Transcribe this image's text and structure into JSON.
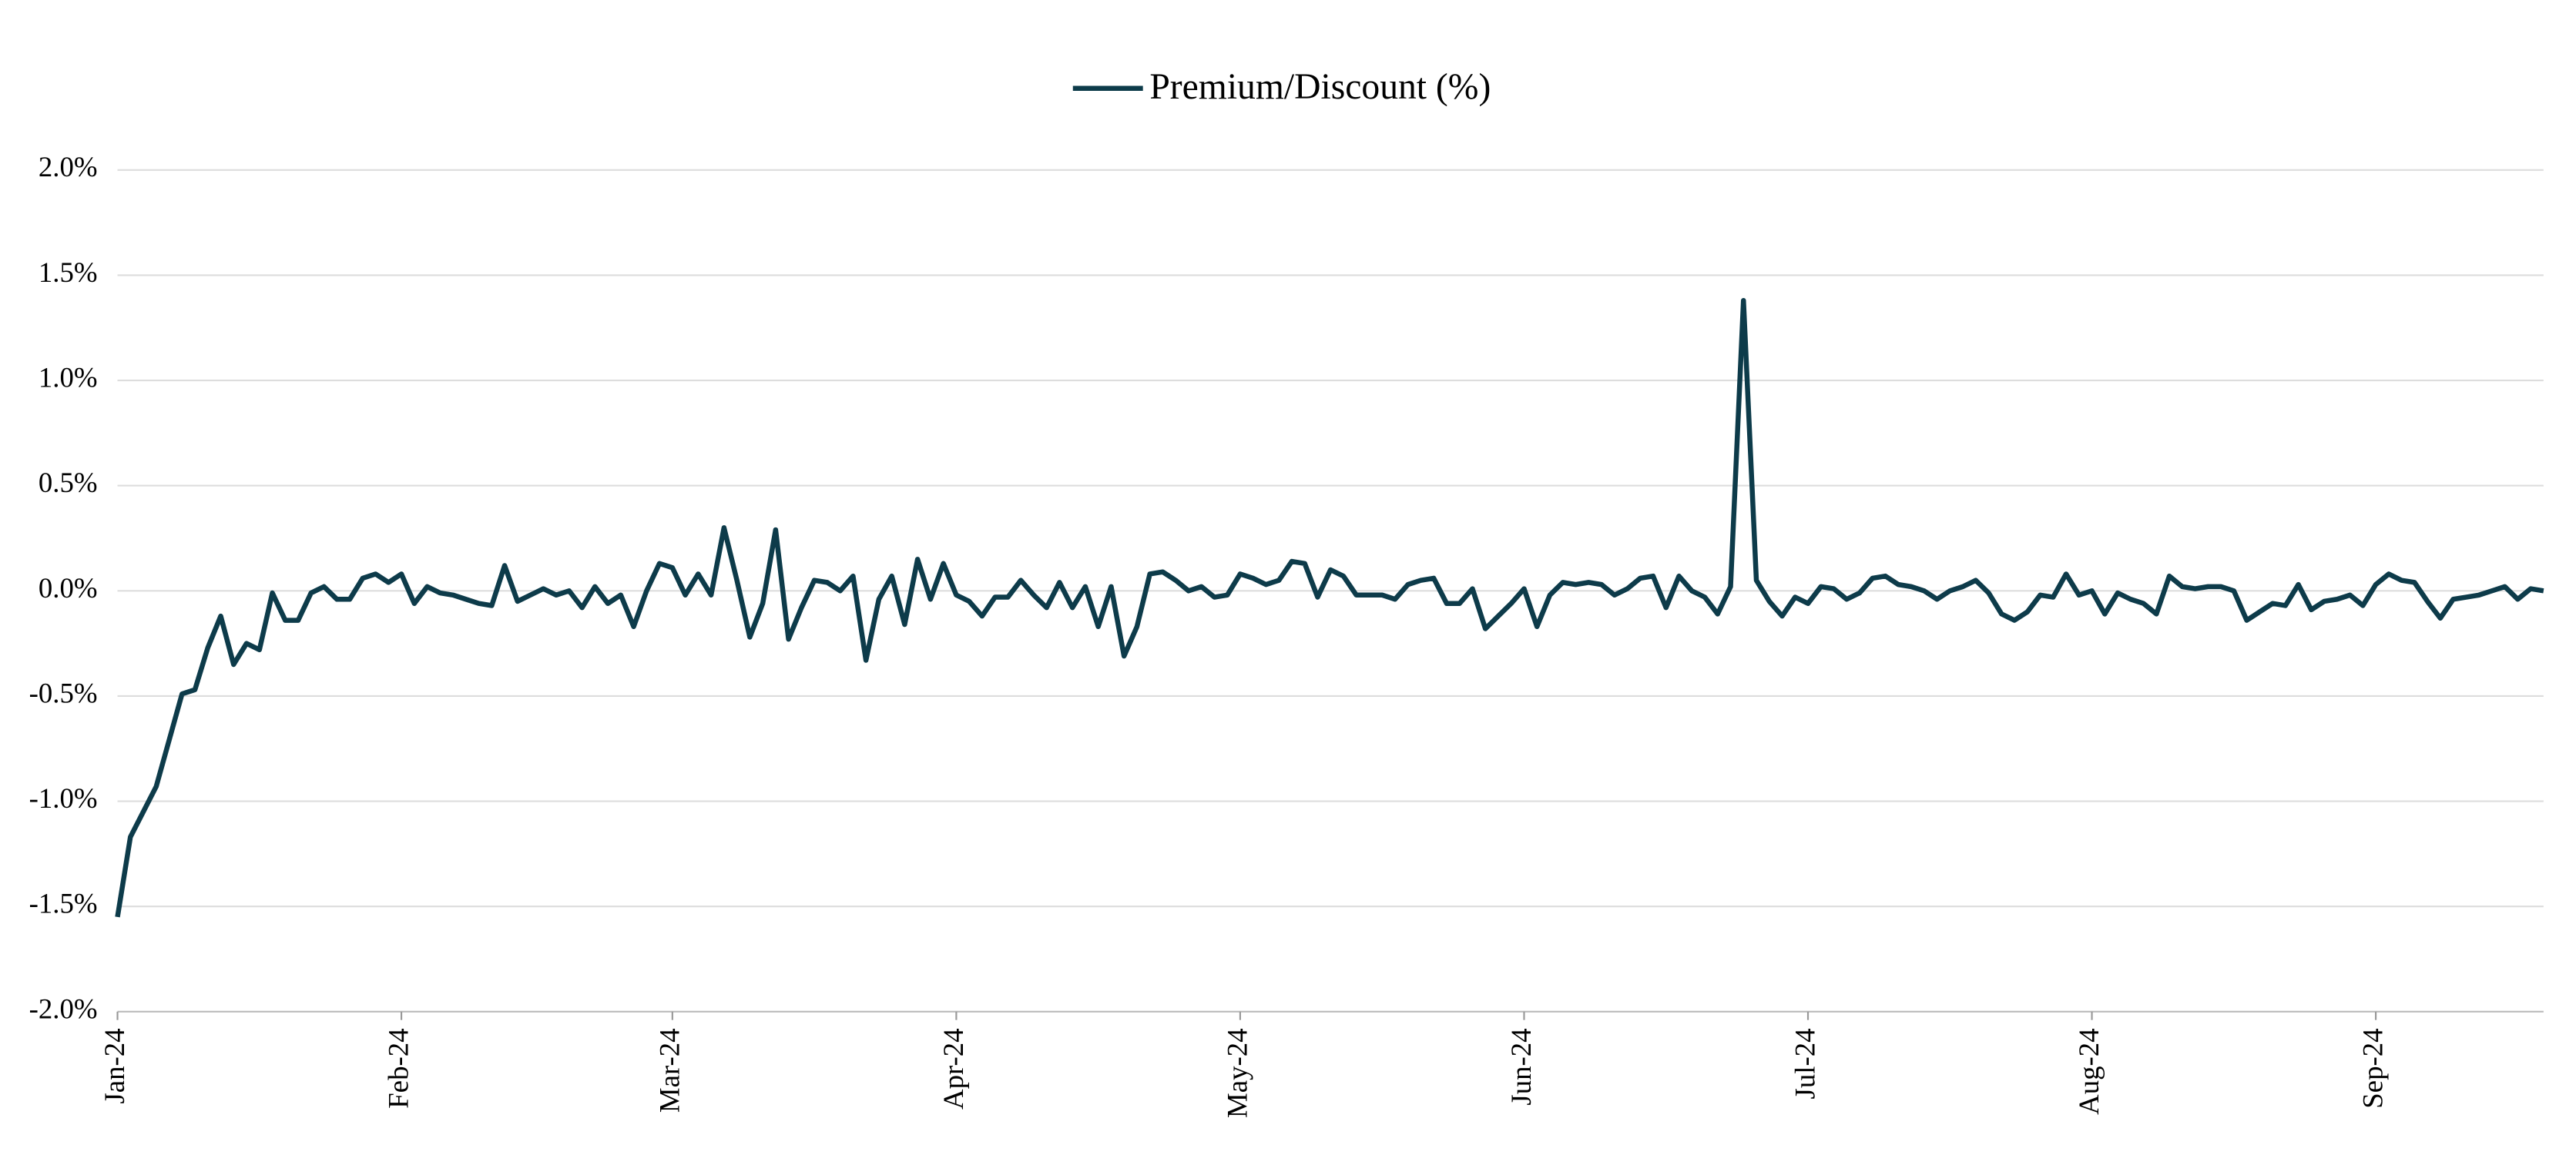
{
  "chart_data": {
    "type": "line",
    "categories": [
      "Jan-24",
      null,
      null,
      null,
      null,
      null,
      null,
      null,
      null,
      null,
      null,
      null,
      null,
      null,
      null,
      null,
      null,
      null,
      null,
      null,
      null,
      null,
      "Feb-24",
      null,
      null,
      null,
      null,
      null,
      null,
      null,
      null,
      null,
      null,
      null,
      null,
      null,
      null,
      null,
      null,
      null,
      null,
      null,
      null,
      "Mar-24",
      null,
      null,
      null,
      null,
      null,
      null,
      null,
      null,
      null,
      null,
      null,
      null,
      null,
      null,
      null,
      null,
      null,
      null,
      null,
      null,
      null,
      "Apr-24",
      null,
      null,
      null,
      null,
      null,
      null,
      null,
      null,
      null,
      null,
      null,
      null,
      null,
      null,
      null,
      null,
      null,
      null,
      null,
      null,
      null,
      "May-24",
      null,
      null,
      null,
      null,
      null,
      null,
      null,
      null,
      null,
      null,
      null,
      null,
      null,
      null,
      null,
      null,
      null,
      null,
      null,
      null,
      null,
      "Jun-24",
      null,
      null,
      null,
      null,
      null,
      null,
      null,
      null,
      null,
      null,
      null,
      null,
      null,
      null,
      null,
      null,
      null,
      null,
      null,
      null,
      null,
      "Jul-24",
      null,
      null,
      null,
      null,
      null,
      null,
      null,
      null,
      null,
      null,
      null,
      null,
      null,
      null,
      null,
      null,
      null,
      null,
      null,
      null,
      null,
      "Aug-24",
      null,
      null,
      null,
      null,
      null,
      null,
      null,
      null,
      null,
      null,
      null,
      null,
      null,
      null,
      null,
      null,
      null,
      null,
      null,
      null,
      null,
      "Sep-24",
      null,
      null,
      null,
      null,
      null,
      null,
      null,
      null,
      null,
      null,
      null,
      null,
      null
    ],
    "series": [
      {
        "name": "Premium/Discount (%)",
        "color": "#0d3b4a",
        "values": [
          -1.55,
          -1.17,
          -1.05,
          -0.93,
          -0.71,
          -0.49,
          -0.47,
          -0.27,
          -0.12,
          -0.35,
          -0.25,
          -0.28,
          -0.01,
          -0.14,
          -0.14,
          -0.01,
          0.02,
          -0.04,
          -0.04,
          0.06,
          0.08,
          0.04,
          0.08,
          -0.06,
          0.02,
          -0.01,
          -0.02,
          -0.04,
          -0.06,
          -0.07,
          0.12,
          -0.05,
          -0.02,
          0.01,
          -0.02,
          0.0,
          -0.08,
          0.02,
          -0.06,
          -0.02,
          -0.17,
          0.0,
          0.13,
          0.11,
          -0.02,
          0.08,
          -0.02,
          0.3,
          0.05,
          -0.22,
          -0.06,
          0.29,
          -0.23,
          -0.08,
          0.05,
          0.04,
          0.0,
          0.07,
          -0.33,
          -0.04,
          0.07,
          -0.16,
          0.15,
          -0.04,
          0.13,
          -0.02,
          -0.05,
          -0.12,
          -0.03,
          -0.03,
          0.05,
          -0.02,
          -0.08,
          0.04,
          -0.08,
          0.02,
          -0.17,
          0.02,
          -0.31,
          -0.17,
          0.08,
          0.09,
          0.05,
          0.0,
          0.02,
          -0.03,
          -0.02,
          0.08,
          0.06,
          0.03,
          0.05,
          0.14,
          0.13,
          -0.03,
          0.1,
          0.07,
          -0.02,
          -0.02,
          -0.02,
          -0.04,
          0.03,
          0.05,
          0.06,
          -0.06,
          -0.06,
          0.01,
          -0.18,
          -0.12,
          -0.06,
          0.01,
          -0.17,
          -0.02,
          0.04,
          0.03,
          0.04,
          0.03,
          -0.02,
          0.01,
          0.06,
          0.07,
          -0.08,
          0.07,
          0.0,
          -0.03,
          -0.11,
          0.02,
          1.38,
          0.05,
          -0.05,
          -0.12,
          -0.03,
          -0.06,
          0.02,
          0.01,
          -0.04,
          -0.01,
          0.06,
          0.07,
          0.03,
          0.02,
          0.0,
          -0.04,
          0.0,
          0.02,
          0.05,
          -0.01,
          -0.11,
          -0.14,
          -0.1,
          -0.02,
          -0.03,
          0.08,
          -0.02,
          0.0,
          -0.11,
          -0.01,
          -0.04,
          -0.06,
          -0.11,
          0.07,
          0.02,
          0.01,
          0.02,
          0.02,
          0.0,
          -0.14,
          -0.1,
          -0.06,
          -0.07,
          0.03,
          -0.09,
          -0.05,
          -0.04,
          -0.02,
          -0.07,
          0.03,
          0.08,
          0.05,
          0.04,
          -0.05,
          -0.13,
          -0.04,
          -0.03,
          -0.02,
          0.0,
          0.02,
          -0.04,
          0.01,
          0.0
        ]
      }
    ],
    "ylim": [
      -2,
      2
    ],
    "yticks": [
      {
        "value": -2,
        "label": "-2.0%"
      },
      {
        "value": -1.5,
        "label": "-1.5%"
      },
      {
        "value": -1,
        "label": "-1.0%"
      },
      {
        "value": -0.5,
        "label": "-0.5%"
      },
      {
        "value": 0,
        "label": "0.0%"
      },
      {
        "value": 0.5,
        "label": "0.5%"
      },
      {
        "value": 1,
        "label": "1.0%"
      },
      {
        "value": 1.5,
        "label": "1.5%"
      },
      {
        "value": 2,
        "label": "2.0%"
      }
    ],
    "grid": true,
    "legend": "top"
  }
}
